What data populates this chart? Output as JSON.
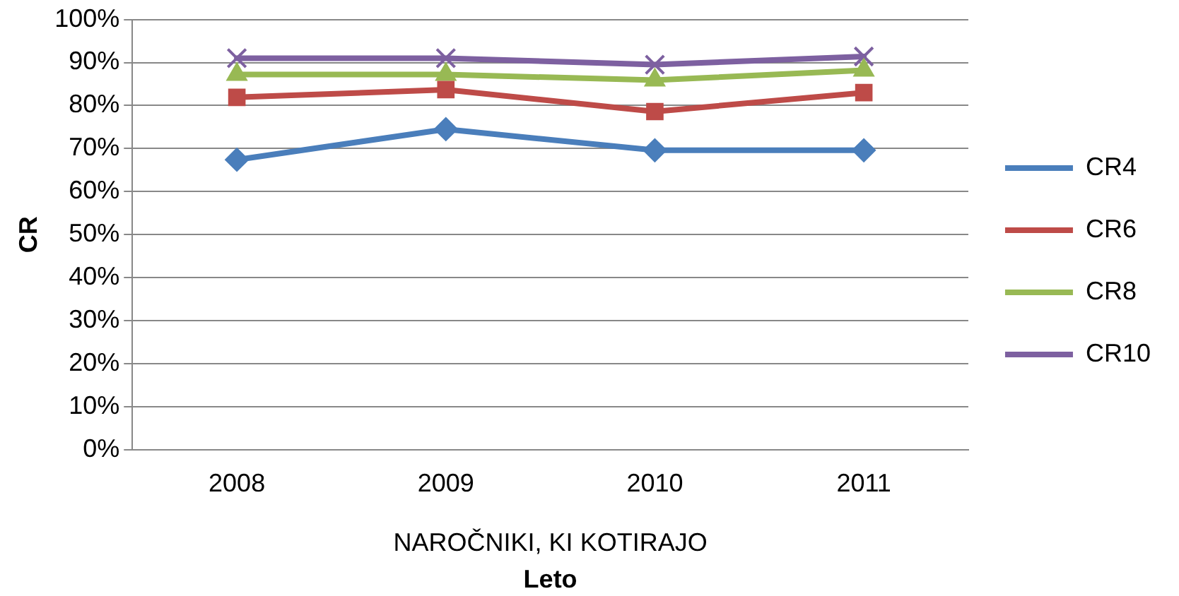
{
  "chart_data": {
    "type": "line",
    "xlabel": "Leto",
    "ylabel": "CR",
    "annotations": [
      "NAROČNIKI, KI KOTIRAJO"
    ],
    "categories": [
      "2008",
      "2009",
      "2010",
      "2011"
    ],
    "series": [
      {
        "name": "CR4",
        "color": "#4a7ebb",
        "marker": "diamond",
        "values": [
          67.4,
          74.5,
          69.6,
          69.6
        ]
      },
      {
        "name": "CR6",
        "color": "#be4b48",
        "marker": "square",
        "values": [
          81.9,
          83.7,
          78.6,
          83.0
        ]
      },
      {
        "name": "CR8",
        "color": "#98b954",
        "marker": "triangle",
        "values": [
          87.2,
          87.2,
          85.9,
          88.2
        ]
      },
      {
        "name": "CR10",
        "color": "#7d60a0",
        "marker": "cross",
        "values": [
          91.0,
          91.0,
          89.5,
          91.4
        ]
      }
    ],
    "ylim": [
      0,
      100
    ],
    "yticks": [
      {
        "value": 0,
        "label": "0%"
      },
      {
        "value": 10,
        "label": "10%"
      },
      {
        "value": 20,
        "label": "20%"
      },
      {
        "value": 30,
        "label": "30%"
      },
      {
        "value": 40,
        "label": "40%"
      },
      {
        "value": 50,
        "label": "50%"
      },
      {
        "value": 60,
        "label": "60%"
      },
      {
        "value": 70,
        "label": "70%"
      },
      {
        "value": 80,
        "label": "80%"
      },
      {
        "value": 90,
        "label": "90%"
      },
      {
        "value": 100,
        "label": "100%"
      }
    ],
    "grid": "y",
    "legend": "right",
    "line_style": "solid"
  }
}
